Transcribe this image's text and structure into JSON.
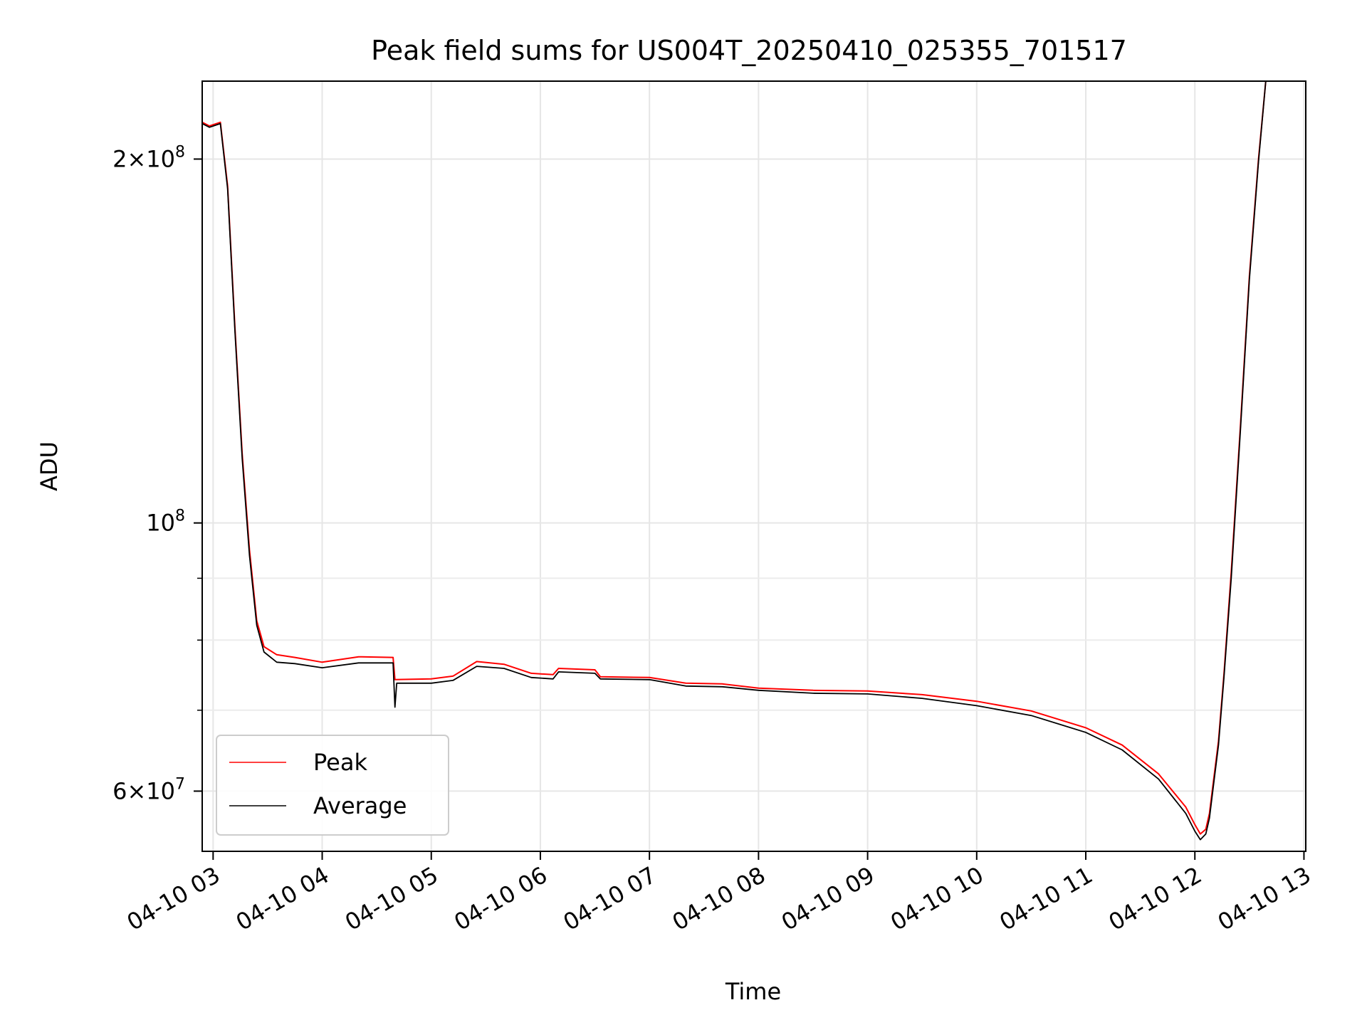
{
  "chart_data": {
    "type": "line",
    "title": "Peak field sums for US004T_20250410_025355_701517",
    "xlabel": "Time",
    "ylabel": "ADU",
    "yscale": "log",
    "xlim": [
      "2025-04-10 02:54",
      "2025-04-10 13:01"
    ],
    "ylim": [
      53500000,
      232000000
    ],
    "grid": true,
    "legend": "lower-left",
    "x_ticks": [
      {
        "value": "2025-04-10 03:00",
        "label": "04-10 03"
      },
      {
        "value": "2025-04-10 04:00",
        "label": "04-10 04"
      },
      {
        "value": "2025-04-10 05:00",
        "label": "04-10 05"
      },
      {
        "value": "2025-04-10 06:00",
        "label": "04-10 06"
      },
      {
        "value": "2025-04-10 07:00",
        "label": "04-10 07"
      },
      {
        "value": "2025-04-10 08:00",
        "label": "04-10 08"
      },
      {
        "value": "2025-04-10 09:00",
        "label": "04-10 09"
      },
      {
        "value": "2025-04-10 10:00",
        "label": "04-10 10"
      },
      {
        "value": "2025-04-10 11:00",
        "label": "04-10 11"
      },
      {
        "value": "2025-04-10 12:00",
        "label": "04-10 12"
      },
      {
        "value": "2025-04-10 13:00",
        "label": "04-10 13"
      }
    ],
    "y_ticks_major": [
      {
        "value": 200000000,
        "mant": "2",
        "exp": "8"
      },
      {
        "value": 100000000,
        "mant": "",
        "exp": "8"
      },
      {
        "value": 60000000,
        "mant": "6",
        "exp": "7"
      }
    ],
    "y_ticks_minor": [
      70000000,
      80000000,
      90000000
    ],
    "series": [
      {
        "name": "Peak",
        "color": "#ff0000",
        "points": [
          [
            "2025-04-10 02:54",
            214500000
          ],
          [
            "2025-04-10 02:58",
            213000000
          ],
          [
            "2025-04-10 03:04",
            214500000
          ],
          [
            "2025-04-10 03:08",
            190000000
          ],
          [
            "2025-04-10 03:12",
            145000000
          ],
          [
            "2025-04-10 03:16",
            114000000
          ],
          [
            "2025-04-10 03:20",
            95000000
          ],
          [
            "2025-04-10 03:24",
            83000000
          ],
          [
            "2025-04-10 03:28",
            79000000
          ],
          [
            "2025-04-10 03:35",
            77800000
          ],
          [
            "2025-04-10 03:45",
            77400000
          ],
          [
            "2025-04-10 04:00",
            76700000
          ],
          [
            "2025-04-10 04:20",
            77500000
          ],
          [
            "2025-04-10 04:39",
            77400000
          ],
          [
            "2025-04-10 04:40",
            74200000
          ],
          [
            "2025-04-10 05:00",
            74300000
          ],
          [
            "2025-04-10 05:12",
            74700000
          ],
          [
            "2025-04-10 05:25",
            76800000
          ],
          [
            "2025-04-10 05:40",
            76400000
          ],
          [
            "2025-04-10 05:55",
            75100000
          ],
          [
            "2025-04-10 06:07",
            74900000
          ],
          [
            "2025-04-10 06:10",
            75800000
          ],
          [
            "2025-04-10 06:30",
            75600000
          ],
          [
            "2025-04-10 06:33",
            74600000
          ],
          [
            "2025-04-10 07:00",
            74500000
          ],
          [
            "2025-04-10 07:20",
            73700000
          ],
          [
            "2025-04-10 07:40",
            73600000
          ],
          [
            "2025-04-10 08:00",
            73000000
          ],
          [
            "2025-04-10 08:30",
            72700000
          ],
          [
            "2025-04-10 09:00",
            72600000
          ],
          [
            "2025-04-10 09:30",
            72100000
          ],
          [
            "2025-04-10 10:00",
            71200000
          ],
          [
            "2025-04-10 10:30",
            69900000
          ],
          [
            "2025-04-10 11:00",
            67700000
          ],
          [
            "2025-04-10 11:20",
            65500000
          ],
          [
            "2025-04-10 11:40",
            62000000
          ],
          [
            "2025-04-10 11:55",
            58200000
          ],
          [
            "2025-04-10 12:00",
            56300000
          ],
          [
            "2025-04-10 12:03",
            55300000
          ],
          [
            "2025-04-10 12:06",
            55800000
          ],
          [
            "2025-04-10 12:08",
            57500000
          ],
          [
            "2025-04-10 12:10",
            60800000
          ],
          [
            "2025-04-10 12:13",
            66000000
          ],
          [
            "2025-04-10 12:16",
            75000000
          ],
          [
            "2025-04-10 12:20",
            91000000
          ],
          [
            "2025-04-10 12:25",
            120000000
          ],
          [
            "2025-04-10 12:30",
            160000000
          ],
          [
            "2025-04-10 12:35",
            200000000
          ],
          [
            "2025-04-10 12:39",
            232000000
          ]
        ]
      },
      {
        "name": "Average",
        "color": "#000000",
        "points": [
          [
            "2025-04-10 02:54",
            214000000
          ],
          [
            "2025-04-10 02:58",
            212500000
          ],
          [
            "2025-04-10 03:04",
            214000000
          ],
          [
            "2025-04-10 03:08",
            189000000
          ],
          [
            "2025-04-10 03:12",
            144000000
          ],
          [
            "2025-04-10 03:16",
            113000000
          ],
          [
            "2025-04-10 03:20",
            94000000
          ],
          [
            "2025-04-10 03:24",
            82300000
          ],
          [
            "2025-04-10 03:28",
            78200000
          ],
          [
            "2025-04-10 03:35",
            76700000
          ],
          [
            "2025-04-10 03:45",
            76500000
          ],
          [
            "2025-04-10 04:00",
            75900000
          ],
          [
            "2025-04-10 04:20",
            76600000
          ],
          [
            "2025-04-10 04:39",
            76600000
          ],
          [
            "2025-04-10 04:40",
            70400000
          ],
          [
            "2025-04-10 04:41",
            73700000
          ],
          [
            "2025-04-10 05:00",
            73700000
          ],
          [
            "2025-04-10 05:12",
            74100000
          ],
          [
            "2025-04-10 05:25",
            76100000
          ],
          [
            "2025-04-10 05:40",
            75800000
          ],
          [
            "2025-04-10 05:55",
            74500000
          ],
          [
            "2025-04-10 06:07",
            74300000
          ],
          [
            "2025-04-10 06:10",
            75300000
          ],
          [
            "2025-04-10 06:30",
            75100000
          ],
          [
            "2025-04-10 06:33",
            74300000
          ],
          [
            "2025-04-10 07:00",
            74200000
          ],
          [
            "2025-04-10 07:20",
            73300000
          ],
          [
            "2025-04-10 07:40",
            73200000
          ],
          [
            "2025-04-10 08:00",
            72700000
          ],
          [
            "2025-04-10 08:30",
            72300000
          ],
          [
            "2025-04-10 09:00",
            72200000
          ],
          [
            "2025-04-10 09:30",
            71600000
          ],
          [
            "2025-04-10 10:00",
            70600000
          ],
          [
            "2025-04-10 10:30",
            69300000
          ],
          [
            "2025-04-10 11:00",
            67100000
          ],
          [
            "2025-04-10 11:20",
            64900000
          ],
          [
            "2025-04-10 11:40",
            61400000
          ],
          [
            "2025-04-10 11:55",
            57500000
          ],
          [
            "2025-04-10 12:00",
            55600000
          ],
          [
            "2025-04-10 12:03",
            54700000
          ],
          [
            "2025-04-10 12:06",
            55300000
          ],
          [
            "2025-04-10 12:08",
            57000000
          ],
          [
            "2025-04-10 12:10",
            60300000
          ],
          [
            "2025-04-10 12:13",
            65500000
          ],
          [
            "2025-04-10 12:16",
            74500000
          ],
          [
            "2025-04-10 12:20",
            90000000
          ],
          [
            "2025-04-10 12:25",
            119000000
          ],
          [
            "2025-04-10 12:30",
            159000000
          ],
          [
            "2025-04-10 12:35",
            199000000
          ],
          [
            "2025-04-10 12:39",
            232000000
          ]
        ]
      }
    ]
  }
}
